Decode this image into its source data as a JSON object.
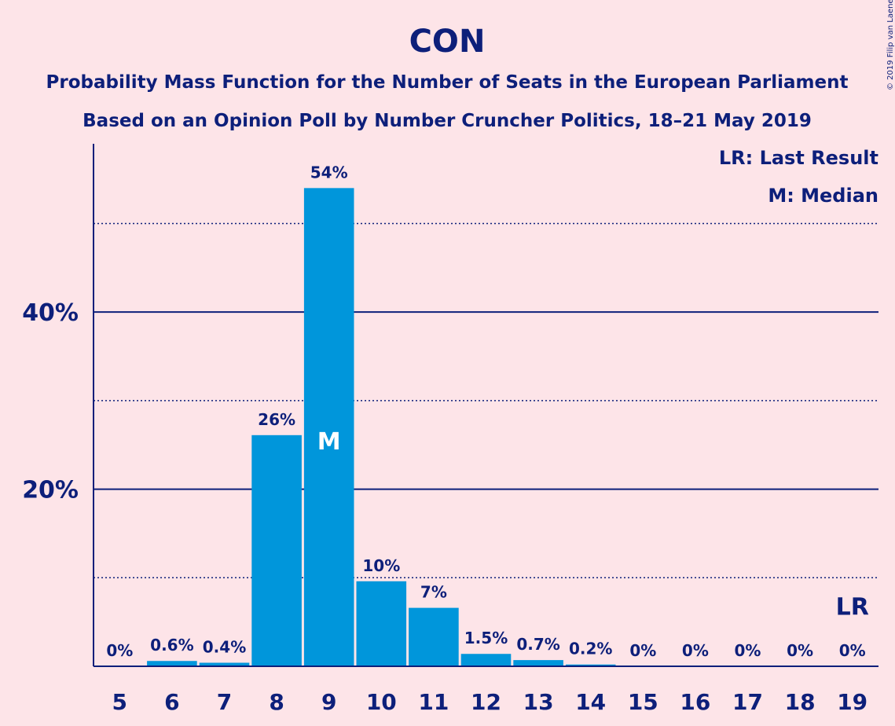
{
  "chart_data": {
    "type": "bar",
    "title": "CON",
    "subtitle_lines": [
      "Probability Mass Function for the Number of Seats in the European Parliament",
      "Based on an Opinion Poll by Number Cruncher Politics, 18–21 May 2019"
    ],
    "categories": [
      "5",
      "6",
      "7",
      "8",
      "9",
      "10",
      "11",
      "12",
      "13",
      "14",
      "15",
      "16",
      "17",
      "18",
      "19"
    ],
    "values": [
      0,
      0.6,
      0.4,
      26,
      54,
      10,
      7,
      1.5,
      0.7,
      0.2,
      0,
      0,
      0,
      0,
      0
    ],
    "data_labels": [
      "0%",
      "0.6%",
      "0.4%",
      "26%",
      "54%",
      "10%",
      "7%",
      "1.5%",
      "0.7%",
      "0.2%",
      "0%",
      "0%",
      "0%",
      "0%",
      "0%"
    ],
    "bar_values": [
      0,
      0.6,
      0.4,
      26.1,
      54,
      9.6,
      6.6,
      1.4,
      0.7,
      0.2,
      0,
      0,
      0,
      0,
      0
    ],
    "ylim": [
      0,
      59
    ],
    "yticks": [
      20,
      40
    ],
    "ytick_labels": [
      "20%",
      "40%"
    ],
    "solid_gridlines": [
      20,
      40
    ],
    "dotted_gridlines": [
      10,
      30,
      50
    ],
    "median_category": "9",
    "median_marker": "M",
    "last_result_category": "19",
    "last_result_marker": "LR",
    "legend": [
      "LR: Last Result",
      "M: Median"
    ],
    "legend_position": "top-right",
    "bar_color": "#0096db",
    "axis_color": "#0d1f7a",
    "background": "#fde4e8"
  },
  "copyright": "© 2019 Filip van Laenen"
}
